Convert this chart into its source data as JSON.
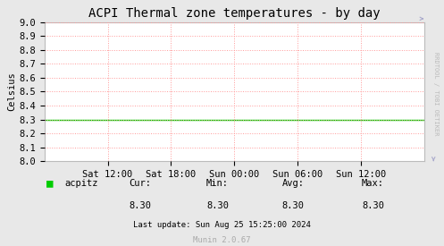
{
  "title": "ACPI Thermal zone temperatures - by day",
  "ylabel": "Celsius",
  "bg_color": "#e8e8e8",
  "plot_bg_color": "#ffffff",
  "grid_color": "#ff9999",
  "line_color": "#00cc00",
  "line_value": 8.3,
  "ylim": [
    8.0,
    9.0
  ],
  "yticks": [
    8.0,
    8.1,
    8.2,
    8.3,
    8.4,
    8.5,
    8.6,
    8.7,
    8.8,
    8.9,
    9.0
  ],
  "xtick_labels": [
    "Sat 12:00",
    "Sat 18:00",
    "Sun 00:00",
    "Sun 06:00",
    "Sun 12:00"
  ],
  "legend_label": "acpitz",
  "cur_val": "8.30",
  "min_val": "8.30",
  "avg_val": "8.30",
  "max_val": "8.30",
  "last_update": "Last update: Sun Aug 25 15:25:00 2024",
  "munin_label": "Munin 2.0.67",
  "rrd_label": "RRDTOOL / TOBI OETIKER",
  "title_fontsize": 10,
  "axis_fontsize": 7.5,
  "legend_fontsize": 7.5,
  "small_fontsize": 6.5
}
